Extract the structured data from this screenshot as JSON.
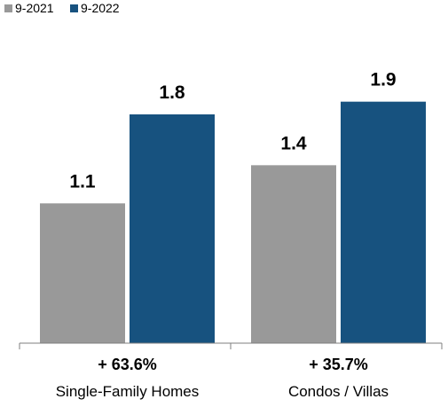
{
  "chart_data": {
    "type": "bar",
    "categories": [
      "Single-Family Homes",
      "Condos / Villas"
    ],
    "changes": [
      "+ 63.6%",
      "+ 35.7%"
    ],
    "series": [
      {
        "name": "9-2021",
        "values": [
          1.1,
          1.4
        ],
        "labels": [
          "1.1",
          "1.4"
        ],
        "color": "#999999"
      },
      {
        "name": "9-2022",
        "values": [
          1.8,
          1.9
        ],
        "labels": [
          "1.8",
          "1.9"
        ],
        "color": "#17527f"
      }
    ],
    "ylim": [
      0,
      2.7
    ],
    "grid": false,
    "legend": "top-left",
    "axis_color": "#7f7f7f"
  }
}
